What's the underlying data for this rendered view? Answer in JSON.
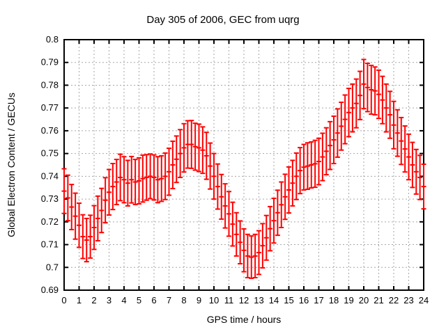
{
  "chart_data": {
    "type": "scatter",
    "style": "yerrorbars",
    "title": "Day 305 of 2006, GEC from uqrg",
    "xlabel": "GPS time / hours",
    "ylabel": "Global Electron Content / GECUs",
    "xlim": [
      0,
      24
    ],
    "ylim": [
      0.69,
      0.8
    ],
    "grid": true,
    "legend": false,
    "series_color": "#ff0000",
    "grid_color": "#a6a6a6",
    "border_color": "#000000",
    "xticks": [
      "0",
      "1",
      "2",
      "3",
      "4",
      "5",
      "6",
      "7",
      "8",
      "9",
      "10",
      "11",
      "12",
      "13",
      "14",
      "15",
      "16",
      "17",
      "18",
      "19",
      "20",
      "21",
      "22",
      "23",
      "24"
    ],
    "yticks": [
      "0.69",
      "0.7",
      "0.71",
      "0.72",
      "0.73",
      "0.74",
      "0.75",
      "0.76",
      "0.77",
      "0.78",
      "0.79",
      "0.8"
    ],
    "x": [
      0,
      0.25,
      0.5,
      0.75,
      1,
      1.25,
      1.5,
      1.75,
      2,
      2.25,
      2.5,
      2.75,
      3,
      3.25,
      3.5,
      3.75,
      4,
      4.25,
      4.5,
      4.75,
      5,
      5.25,
      5.5,
      5.75,
      6,
      6.25,
      6.5,
      6.75,
      7,
      7.25,
      7.5,
      7.75,
      8,
      8.25,
      8.5,
      8.75,
      9,
      9.25,
      9.5,
      9.75,
      10,
      10.25,
      10.5,
      10.75,
      11,
      11.25,
      11.5,
      11.75,
      12,
      12.25,
      12.5,
      12.75,
      13,
      13.25,
      13.5,
      13.75,
      14,
      14.25,
      14.5,
      14.75,
      15,
      15.25,
      15.5,
      15.75,
      16,
      16.25,
      16.5,
      16.75,
      17,
      17.25,
      17.5,
      17.75,
      18,
      18.25,
      18.5,
      18.75,
      19,
      19.25,
      19.5,
      19.75,
      20,
      20.25,
      20.5,
      20.75,
      21,
      21.25,
      21.5,
      21.75,
      22,
      22.25,
      22.5,
      22.75,
      23,
      23.25,
      23.5,
      23.75,
      24
    ],
    "y": [
      0.7335,
      0.7305,
      0.7265,
      0.7225,
      0.7185,
      0.7135,
      0.712,
      0.7135,
      0.7175,
      0.7215,
      0.725,
      0.7295,
      0.733,
      0.7355,
      0.7375,
      0.7395,
      0.7385,
      0.737,
      0.7385,
      0.7375,
      0.738,
      0.739,
      0.7395,
      0.74,
      0.7395,
      0.7385,
      0.739,
      0.74,
      0.742,
      0.745,
      0.7475,
      0.75,
      0.7525,
      0.754,
      0.754,
      0.753,
      0.7525,
      0.7515,
      0.749,
      0.7445,
      0.74,
      0.7355,
      0.731,
      0.727,
      0.7235,
      0.719,
      0.7145,
      0.711,
      0.7075,
      0.705,
      0.7045,
      0.705,
      0.7065,
      0.7095,
      0.713,
      0.717,
      0.7205,
      0.724,
      0.7275,
      0.731,
      0.734,
      0.737,
      0.74,
      0.7425,
      0.744,
      0.7445,
      0.745,
      0.7455,
      0.7465,
      0.7485,
      0.751,
      0.7535,
      0.756,
      0.759,
      0.762,
      0.765,
      0.768,
      0.77,
      0.772,
      0.7755,
      0.7805,
      0.779,
      0.778,
      0.7775,
      0.776,
      0.7735,
      0.77,
      0.767,
      0.7625,
      0.759,
      0.7555,
      0.752,
      0.7485,
      0.745,
      0.742,
      0.7395,
      0.7355
    ],
    "yerr": [
      0.0098,
      0.01,
      0.0099,
      0.0101,
      0.0097,
      0.0096,
      0.0095,
      0.0094,
      0.0096,
      0.0098,
      0.0097,
      0.0099,
      0.01,
      0.0101,
      0.0099,
      0.0102,
      0.0101,
      0.01,
      0.0102,
      0.0099,
      0.0101,
      0.0103,
      0.01,
      0.0098,
      0.0099,
      0.0101,
      0.01,
      0.0102,
      0.0103,
      0.0104,
      0.0102,
      0.0105,
      0.0106,
      0.0104,
      0.0105,
      0.0103,
      0.0104,
      0.0102,
      0.0103,
      0.0101,
      0.01,
      0.0099,
      0.0098,
      0.0097,
      0.0098,
      0.0096,
      0.0095,
      0.0094,
      0.0094,
      0.0095,
      0.0093,
      0.0095,
      0.0096,
      0.0097,
      0.0098,
      0.0097,
      0.0098,
      0.0099,
      0.01,
      0.0099,
      0.0101,
      0.01,
      0.0102,
      0.0101,
      0.01,
      0.0102,
      0.0101,
      0.0103,
      0.0102,
      0.0104,
      0.0103,
      0.0105,
      0.0104,
      0.0106,
      0.0105,
      0.0107,
      0.0106,
      0.0105,
      0.0107,
      0.0106,
      0.0108,
      0.0106,
      0.0107,
      0.0105,
      0.0106,
      0.0104,
      0.0105,
      0.0103,
      0.0104,
      0.0102,
      0.0103,
      0.0101,
      0.01,
      0.0099,
      0.0098,
      0.0097,
      0.0098
    ]
  }
}
